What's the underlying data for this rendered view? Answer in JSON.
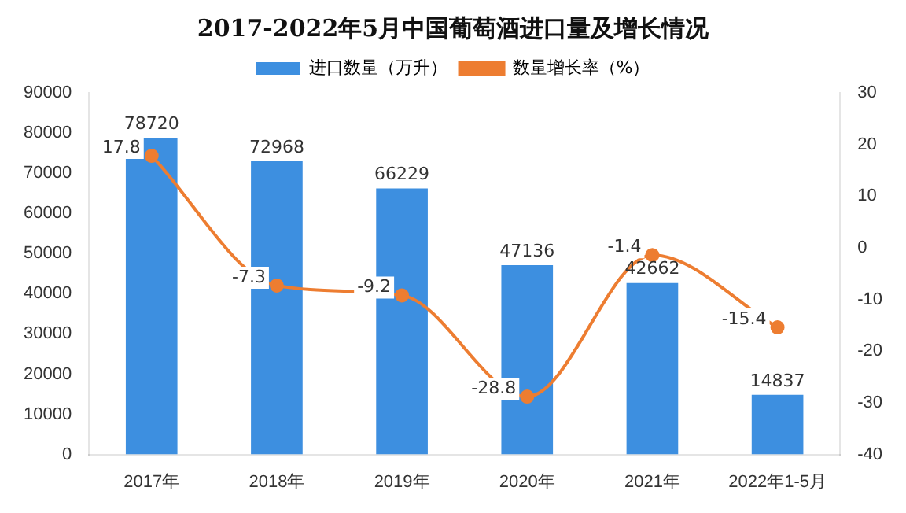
{
  "chart_data": {
    "type": "bar",
    "title": "2017-2022年5月中国葡萄酒进口量及增长情况",
    "categories": [
      "2017年",
      "2018年",
      "2019年",
      "2020年",
      "2021年",
      "2022年1-5月"
    ],
    "series": [
      {
        "name": "进口数量（万升）",
        "color": "#3d8fe0",
        "values": [
          78720,
          72968,
          66229,
          47136,
          42662,
          14837
        ]
      },
      {
        "name": "数量增长率（%）",
        "type": "line",
        "axis": "y2",
        "color": "#ed7d31",
        "values": [
          17.8,
          -7.3,
          -9.2,
          -28.8,
          -1.4,
          -15.4
        ]
      }
    ],
    "ylim": [
      0,
      90000
    ],
    "yticks": [
      0,
      10000,
      20000,
      30000,
      40000,
      50000,
      60000,
      70000,
      80000,
      90000
    ],
    "y2lim": [
      -40,
      30
    ],
    "y2ticks": [
      -40,
      -30,
      -20,
      -10,
      0,
      10,
      20,
      30
    ],
    "data_labels": true,
    "legend": "top",
    "marker": "circle",
    "line_style": "solid"
  }
}
